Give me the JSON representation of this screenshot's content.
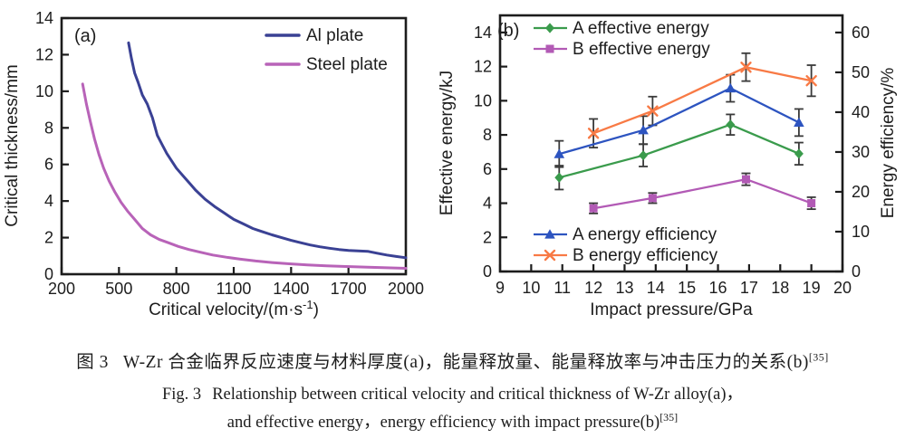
{
  "colors": {
    "axis": "#1c1c1c",
    "ink": "#1d1d1d",
    "errorbar": "#3a3a3a",
    "al_plate": "#3a4194",
    "steel_plate": "#b863b8",
    "a_effective": "#3a9b4c",
    "b_effective": "#b25ab5",
    "a_efficiency": "#2d54c0",
    "b_efficiency": "#f87a45"
  },
  "caption": {
    "zh_label": "图 3",
    "zh_text": "W-Zr 合金临界反应速度与材料厚度(a)，能量释放量、能量释放率与冲击压力的关系(b)",
    "zh_ref": "[35]",
    "en_label": "Fig. 3",
    "en_line1": "Relationship between critical velocity and critical thickness of W-Zr alloy(a)，",
    "en_line2": "and effective energy，energy efficiency with impact pressure(b)",
    "en_ref": "[35]"
  },
  "chart_data": [
    {
      "id": "a",
      "type": "line",
      "panel_label": "(a)",
      "xlabel_main": "Critical velocity/(m·s",
      "xlabel_sup": "-1",
      "xlabel_close": ")",
      "ylabel": "Critical thickness/mm",
      "xlim": [
        200,
        2000
      ],
      "xticks": [
        200,
        500,
        800,
        1100,
        1400,
        1700,
        2000
      ],
      "ylim": [
        0,
        14
      ],
      "yticks": [
        0,
        2,
        4,
        6,
        8,
        10,
        12,
        14
      ],
      "grid": false,
      "legend_position": "top-right-inside",
      "series": [
        {
          "name": "Al plate",
          "color_key": "al_plate",
          "x": [
            550,
            565,
            582,
            600,
            622,
            648,
            675,
            700,
            725,
            750,
            775,
            800,
            825,
            850,
            875,
            900,
            950,
            1000,
            1050,
            1100,
            1150,
            1200,
            1250,
            1300,
            1350,
            1400,
            1450,
            1500,
            1550,
            1600,
            1650,
            1700,
            1750,
            1800,
            1850,
            1900,
            1950,
            2000
          ],
          "y": [
            12.65,
            11.8,
            11.0,
            10.5,
            9.8,
            9.3,
            8.55,
            7.6,
            7.1,
            6.6,
            6.2,
            5.8,
            5.5,
            5.2,
            4.9,
            4.6,
            4.1,
            3.7,
            3.35,
            3.0,
            2.75,
            2.5,
            2.32,
            2.15,
            2.0,
            1.85,
            1.72,
            1.6,
            1.5,
            1.42,
            1.35,
            1.3,
            1.27,
            1.25,
            1.15,
            1.05,
            0.97,
            0.9
          ]
        },
        {
          "name": "Steel plate",
          "color_key": "steel_plate",
          "x": [
            310,
            330,
            350,
            372,
            395,
            420,
            448,
            478,
            510,
            545,
            582,
            622,
            665,
            710,
            758,
            810,
            865,
            925,
            990,
            1060,
            1135,
            1215,
            1300,
            1390,
            1485,
            1585,
            1690,
            1800,
            1900,
            2000
          ],
          "y": [
            10.4,
            9.3,
            8.35,
            7.4,
            6.55,
            5.8,
            5.1,
            4.5,
            3.95,
            3.45,
            3.0,
            2.5,
            2.15,
            1.9,
            1.72,
            1.52,
            1.35,
            1.2,
            1.05,
            0.93,
            0.82,
            0.72,
            0.64,
            0.57,
            0.51,
            0.46,
            0.42,
            0.38,
            0.35,
            0.32
          ]
        }
      ]
    },
    {
      "id": "b",
      "type": "line",
      "panel_label": "(b)",
      "xlabel": "Impact pressure/GPa",
      "ylabel_left": "Effective energy/kJ",
      "ylabel_right": "Energy efficiency/%",
      "xlim": [
        9,
        20
      ],
      "xticks": [
        9,
        10,
        11,
        12,
        13,
        14,
        15,
        16,
        17,
        18,
        19,
        20
      ],
      "ylim_left": [
        0,
        15
      ],
      "yticks_left": [
        0,
        2,
        4,
        6,
        8,
        10,
        12,
        14
      ],
      "ylim_right": [
        0,
        64.3
      ],
      "yticks_right": [
        0,
        10,
        20,
        30,
        40,
        50,
        60
      ],
      "grid": false,
      "series": [
        {
          "name": "A effective energy",
          "axis": "left",
          "marker": "diamond",
          "color_key": "a_effective",
          "x": [
            10.9,
            13.6,
            16.4,
            18.6
          ],
          "y": [
            5.5,
            6.8,
            8.6,
            6.9
          ],
          "yerr": [
            0.7,
            0.65,
            0.6,
            0.65
          ]
        },
        {
          "name": "B effective energy",
          "axis": "left",
          "marker": "square",
          "color_key": "b_effective",
          "x": [
            12.0,
            13.9,
            16.9,
            19.0
          ],
          "y": [
            3.7,
            4.3,
            5.4,
            4.0
          ],
          "yerr": [
            0.3,
            0.3,
            0.35,
            0.35
          ]
        },
        {
          "name": "A energy efficiency",
          "axis": "right",
          "marker": "triangle",
          "color_key": "a_efficiency",
          "x": [
            10.9,
            13.6,
            16.4,
            18.6
          ],
          "y": [
            29.5,
            35.5,
            46.0,
            37.4
          ],
          "yerr": [
            3.3,
            3.5,
            3.4,
            3.4
          ]
        },
        {
          "name": "B energy efficiency",
          "axis": "right",
          "marker": "x",
          "color_key": "b_efficiency",
          "x": [
            12.0,
            13.9,
            16.9,
            19.0
          ],
          "y": [
            34.7,
            40.3,
            51.3,
            47.9
          ],
          "yerr": [
            3.6,
            3.6,
            3.5,
            3.9
          ]
        }
      ]
    }
  ]
}
